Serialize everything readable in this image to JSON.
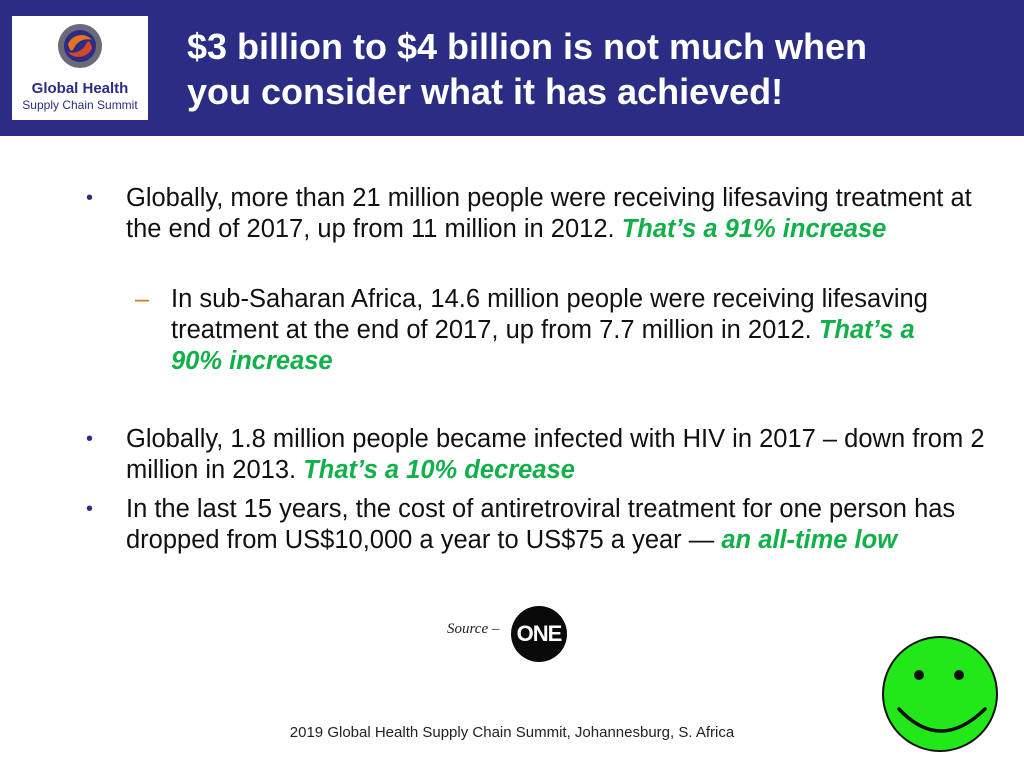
{
  "header": {
    "title_line1": "$3 billion to $4 billion is not much when",
    "title_line2": "you consider what it has achieved!",
    "logo": {
      "title": "Global Health",
      "subtitle": "Supply Chain Summit"
    }
  },
  "bullets": [
    {
      "text": "Globally, more than 21 million people were receiving lifesaving treatment at the end of 2017, up from 11 million in 2012.",
      "highlight": "That’s a 91% increase"
    },
    {
      "text": "In sub-Saharan Africa, 14.6 million people were receiving lifesaving treatment at the end of 2017, up from 7.7 million in 2012.",
      "highlight": "That’s a 90% increase"
    },
    {
      "text": "Globally, 1.8 million people became infected with HIV in 2017 – down from 2 million in 2013.",
      "highlight": "That’s a 10% decrease"
    },
    {
      "text": "In the last 15 years, the cost of antiretroviral treatment for one person has dropped from US$10,000 a year to US$75 a year —",
      "highlight": "an all-time low"
    }
  ],
  "bullet_marks": {
    "primary": "•",
    "sub": "–"
  },
  "source": {
    "label": "Source –",
    "logo_text": "ONE"
  },
  "footer": {
    "text": "2019 Global Health Supply Chain Summit, Johannesburg, S. Africa"
  },
  "colors": {
    "header_bg": "#2b2d84",
    "highlight": "#11b04a",
    "smiley": "#22e81a"
  }
}
